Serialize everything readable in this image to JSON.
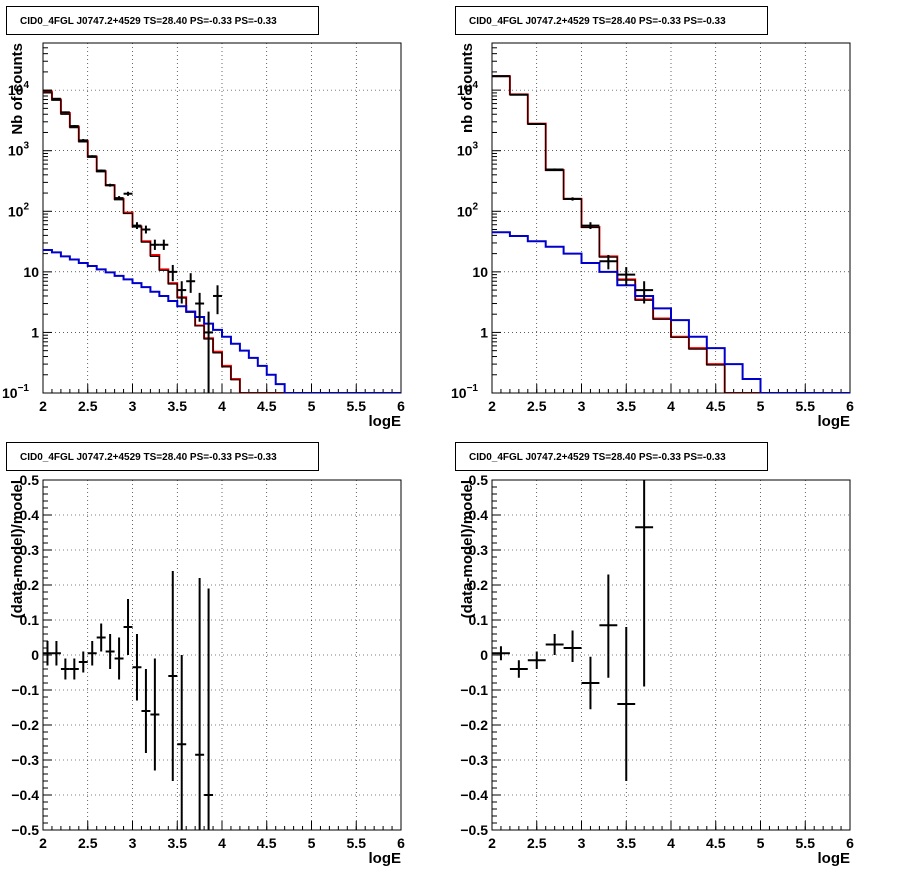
{
  "chart_data": [
    {
      "type": "histogram",
      "title": "CID0_4FGL J0747.2+4529 TS=28.40 PS=-0.33 PS=-0.33",
      "xlabel": "logE",
      "ylabel": "Nb of counts",
      "xlim": [
        2,
        6
      ],
      "ylim": [
        0.1,
        60000
      ],
      "yscale": "log",
      "grid": true,
      "x_ticks": [
        "2",
        "2.5",
        "3",
        "3.5",
        "4",
        "4.5",
        "5",
        "5.5",
        "6"
      ],
      "y_ticks": [
        {
          "v": 0.1,
          "label": "10",
          "sup": "−1"
        },
        {
          "v": 1,
          "label": "1",
          "sup": ""
        },
        {
          "v": 10,
          "label": "10",
          "sup": ""
        },
        {
          "v": 100,
          "label": "10",
          "sup": "2"
        },
        {
          "v": 1000,
          "label": "10",
          "sup": "3"
        },
        {
          "v": 10000,
          "label": "10",
          "sup": "4"
        }
      ],
      "bin_edges": [
        2.0,
        2.1,
        2.2,
        2.3,
        2.4,
        2.5,
        2.6,
        2.7,
        2.8,
        2.9,
        3.0,
        3.1,
        3.2,
        3.3,
        3.4,
        3.5,
        3.6,
        3.7,
        3.8,
        3.9,
        4.0,
        4.1,
        4.2,
        4.3,
        4.4,
        4.5,
        4.6,
        4.7,
        4.8,
        4.9,
        5.0,
        5.1,
        5.2,
        5.3,
        5.4,
        5.5,
        5.6,
        5.7,
        5.8,
        5.9,
        6.0
      ],
      "series": [
        {
          "name": "",
          "color": "#ff0000",
          "values": [
            9500,
            7000,
            4200,
            2500,
            1450,
            800,
            460,
            270,
            160,
            95,
            56,
            32,
            19,
            11,
            6.5,
            3.8,
            2.2,
            1.3,
            0.8,
            0.48,
            0.28,
            0.17,
            0.1,
            0.1,
            0.1,
            0.1,
            0.1,
            0.1,
            0.1,
            0.1,
            0.1,
            0.1,
            0.1,
            0.1,
            0.1,
            0.1,
            0.1,
            0.1,
            0.1,
            0.1
          ]
        },
        {
          "name": "",
          "color": "#000000",
          "values": [
            9000,
            6800,
            4000,
            2400,
            1400,
            780,
            450,
            265,
            155,
            92,
            55,
            31,
            18,
            10.6,
            6.3,
            3.7,
            2.15,
            1.28,
            0.78,
            0.46,
            0.27,
            0.165,
            0.1,
            0.1,
            0.1,
            0.1,
            0.1,
            0.1,
            0.1,
            0.1,
            0.1,
            0.1,
            0.1,
            0.1,
            0.1,
            0.1,
            0.1,
            0.1,
            0.1,
            0.1
          ]
        },
        {
          "name": "",
          "color": "#0000cc",
          "values": [
            23,
            21,
            18,
            16,
            14,
            12.5,
            11,
            9.8,
            8.6,
            7.5,
            6.5,
            5.6,
            4.7,
            4.0,
            3.3,
            2.7,
            2.2,
            1.8,
            1.4,
            1.1,
            0.85,
            0.65,
            0.5,
            0.38,
            0.28,
            0.2,
            0.14,
            0.1,
            0.1,
            0.1,
            0.1,
            0.1,
            0.1,
            0.1,
            0.1,
            0.1,
            0.1,
            0.1,
            0.1,
            0.1
          ]
        }
      ],
      "points": [
        {
          "x": 2.05,
          "y": 9800,
          "ylo": 9600,
          "yhi": 10000
        },
        {
          "x": 2.15,
          "y": 7200,
          "ylo": 7000,
          "yhi": 7400
        },
        {
          "x": 2.25,
          "y": 4300,
          "ylo": 4150,
          "yhi": 4450
        },
        {
          "x": 2.35,
          "y": 2550,
          "ylo": 2450,
          "yhi": 2650
        },
        {
          "x": 2.45,
          "y": 1480,
          "ylo": 1400,
          "yhi": 1560
        },
        {
          "x": 2.55,
          "y": 810,
          "ylo": 780,
          "yhi": 840
        },
        {
          "x": 2.65,
          "y": 470,
          "ylo": 450,
          "yhi": 490
        },
        {
          "x": 2.75,
          "y": 270,
          "ylo": 255,
          "yhi": 285
        },
        {
          "x": 2.85,
          "y": 165,
          "ylo": 155,
          "yhi": 178
        },
        {
          "x": 2.95,
          "y": 195,
          "ylo": 180,
          "yhi": 210
        },
        {
          "x": 3.05,
          "y": 58,
          "ylo": 51,
          "yhi": 66
        },
        {
          "x": 3.15,
          "y": 50,
          "ylo": 43,
          "yhi": 58
        },
        {
          "x": 3.25,
          "y": 28,
          "ylo": 23,
          "yhi": 34
        },
        {
          "x": 3.35,
          "y": 28,
          "ylo": 23,
          "yhi": 34
        },
        {
          "x": 3.45,
          "y": 10,
          "ylo": 7,
          "yhi": 13
        },
        {
          "x": 3.55,
          "y": 5,
          "ylo": 3,
          "yhi": 7
        },
        {
          "x": 3.65,
          "y": 7,
          "ylo": 4.5,
          "yhi": 9.5
        },
        {
          "x": 3.75,
          "y": 3,
          "ylo": 1.5,
          "yhi": 4.5
        },
        {
          "x": 3.85,
          "y": 1,
          "ylo": 0.1,
          "yhi": 2.2
        },
        {
          "x": 3.95,
          "y": 4,
          "ylo": 2,
          "yhi": 6
        }
      ]
    },
    {
      "type": "histogram",
      "title": "CID0_4FGL J0747.2+4529 TS=28.40 PS=-0.33 PS=-0.33",
      "xlabel": "logE",
      "ylabel": "nb of counts",
      "xlim": [
        2,
        6
      ],
      "ylim": [
        0.1,
        60000
      ],
      "yscale": "log",
      "grid": true,
      "x_ticks": [
        "2",
        "2.5",
        "3",
        "3.5",
        "4",
        "4.5",
        "5",
        "5.5",
        "6"
      ],
      "y_ticks": [
        {
          "v": 0.1,
          "label": "10",
          "sup": "−1"
        },
        {
          "v": 1,
          "label": "1",
          "sup": ""
        },
        {
          "v": 10,
          "label": "10",
          "sup": ""
        },
        {
          "v": 100,
          "label": "10",
          "sup": "2"
        },
        {
          "v": 1000,
          "label": "10",
          "sup": "3"
        },
        {
          "v": 10000,
          "label": "10",
          "sup": "4"
        }
      ],
      "bin_edges": [
        2.0,
        2.2,
        2.4,
        2.6,
        2.8,
        3.0,
        3.2,
        3.4,
        3.6,
        3.8,
        4.0,
        4.2,
        4.4,
        4.6,
        4.8,
        5.0,
        5.2,
        5.4,
        5.6,
        5.8,
        6.0
      ],
      "series": [
        {
          "name": "",
          "color": "#ff0000",
          "values": [
            17000,
            8500,
            2800,
            480,
            160,
            55,
            18,
            7.5,
            3.5,
            1.7,
            0.85,
            0.55,
            0.3,
            0.1,
            0.1,
            0.1,
            0.1,
            0.1,
            0.1,
            0.1
          ]
        },
        {
          "name": "",
          "color": "#000000",
          "values": [
            16800,
            8400,
            2750,
            470,
            158,
            54,
            17.5,
            7.3,
            3.4,
            1.65,
            0.83,
            0.53,
            0.29,
            0.1,
            0.1,
            0.1,
            0.1,
            0.1,
            0.1,
            0.1
          ]
        },
        {
          "name": "",
          "color": "#0000cc",
          "values": [
            45,
            39,
            32,
            26,
            20,
            14,
            10,
            6,
            4,
            2.5,
            1.6,
            0.85,
            0.55,
            0.3,
            0.17,
            0.1,
            0.1,
            0.1,
            0.1,
            0.1
          ]
        }
      ],
      "points": [
        {
          "x": 2.1,
          "y": 17000,
          "ylo": 16800,
          "yhi": 17200
        },
        {
          "x": 2.3,
          "y": 8400,
          "ylo": 8300,
          "yhi": 8500
        },
        {
          "x": 2.5,
          "y": 2760,
          "ylo": 2700,
          "yhi": 2820
        },
        {
          "x": 2.7,
          "y": 490,
          "ylo": 470,
          "yhi": 510
        },
        {
          "x": 2.9,
          "y": 160,
          "ylo": 150,
          "yhi": 170
        },
        {
          "x": 3.1,
          "y": 58,
          "ylo": 51,
          "yhi": 66
        },
        {
          "x": 3.3,
          "y": 15,
          "ylo": 11,
          "yhi": 19
        },
        {
          "x": 3.5,
          "y": 9,
          "ylo": 6,
          "yhi": 12
        },
        {
          "x": 3.7,
          "y": 5,
          "ylo": 3,
          "yhi": 7
        }
      ]
    },
    {
      "type": "scatter",
      "title": "CID0_4FGL J0747.2+4529 TS=28.40 PS=-0.33 PS=-0.33",
      "xlabel": "logE",
      "ylabel": "(data-model)/model",
      "xlim": [
        2,
        6
      ],
      "ylim": [
        -0.5,
        0.5
      ],
      "yscale": "linear",
      "grid": true,
      "x_ticks": [
        "2",
        "2.5",
        "3",
        "3.5",
        "4",
        "4.5",
        "5",
        "5.5",
        "6"
      ],
      "y_ticks": [
        {
          "v": -0.5,
          "label": "−0.5",
          "sup": ""
        },
        {
          "v": -0.4,
          "label": "−0.4",
          "sup": ""
        },
        {
          "v": -0.3,
          "label": "−0.3",
          "sup": ""
        },
        {
          "v": -0.2,
          "label": "−0.2",
          "sup": ""
        },
        {
          "v": -0.1,
          "label": "−0.1",
          "sup": ""
        },
        {
          "v": 0,
          "label": "0",
          "sup": ""
        },
        {
          "v": 0.1,
          "label": "0.1",
          "sup": ""
        },
        {
          "v": 0.2,
          "label": "0.2",
          "sup": ""
        },
        {
          "v": 0.3,
          "label": "0.3",
          "sup": ""
        },
        {
          "v": 0.4,
          "label": "0.4",
          "sup": ""
        },
        {
          "v": 0.5,
          "label": "0.5",
          "sup": ""
        }
      ],
      "bin_half_width": 0.05,
      "points": [
        {
          "x": 2.05,
          "y": 0.005,
          "ylo": -0.03,
          "yhi": 0.04
        },
        {
          "x": 2.15,
          "y": 0.005,
          "ylo": -0.03,
          "yhi": 0.04
        },
        {
          "x": 2.25,
          "y": -0.04,
          "ylo": -0.07,
          "yhi": -0.01
        },
        {
          "x": 2.35,
          "y": -0.04,
          "ylo": -0.07,
          "yhi": -0.01
        },
        {
          "x": 2.45,
          "y": -0.02,
          "ylo": -0.05,
          "yhi": 0.01
        },
        {
          "x": 2.55,
          "y": 0.005,
          "ylo": -0.03,
          "yhi": 0.04
        },
        {
          "x": 2.65,
          "y": 0.05,
          "ylo": 0.01,
          "yhi": 0.09
        },
        {
          "x": 2.75,
          "y": 0.01,
          "ylo": -0.04,
          "yhi": 0.06
        },
        {
          "x": 2.85,
          "y": -0.01,
          "ylo": -0.07,
          "yhi": 0.05
        },
        {
          "x": 2.95,
          "y": 0.08,
          "ylo": 0.0,
          "yhi": 0.16
        },
        {
          "x": 3.05,
          "y": -0.035,
          "ylo": -0.13,
          "yhi": 0.06
        },
        {
          "x": 3.15,
          "y": -0.16,
          "ylo": -0.28,
          "yhi": -0.04
        },
        {
          "x": 3.25,
          "y": -0.17,
          "ylo": -0.33,
          "yhi": -0.01
        },
        {
          "x": 3.45,
          "y": -0.06,
          "ylo": -0.36,
          "yhi": 0.24
        },
        {
          "x": 3.55,
          "y": -0.255,
          "ylo": -0.5,
          "yhi": 0.0
        },
        {
          "x": 3.75,
          "y": -0.285,
          "ylo": -0.5,
          "yhi": 0.22
        },
        {
          "x": 3.85,
          "y": -0.4,
          "ylo": -0.5,
          "yhi": 0.19
        }
      ]
    },
    {
      "type": "scatter",
      "title": "CID0_4FGL J0747.2+4529 TS=28.40 PS=-0.33 PS=-0.33",
      "xlabel": "logE",
      "ylabel": "(data-model)/model",
      "xlim": [
        2,
        6
      ],
      "ylim": [
        -0.5,
        0.5
      ],
      "yscale": "linear",
      "grid": true,
      "x_ticks": [
        "2",
        "2.5",
        "3",
        "3.5",
        "4",
        "4.5",
        "5",
        "5.5",
        "6"
      ],
      "y_ticks": [
        {
          "v": -0.5,
          "label": "−0.5",
          "sup": ""
        },
        {
          "v": -0.4,
          "label": "−0.4",
          "sup": ""
        },
        {
          "v": -0.3,
          "label": "−0.3",
          "sup": ""
        },
        {
          "v": -0.2,
          "label": "−0.2",
          "sup": ""
        },
        {
          "v": -0.1,
          "label": "−0.1",
          "sup": ""
        },
        {
          "v": 0,
          "label": "0",
          "sup": ""
        },
        {
          "v": 0.1,
          "label": "0.1",
          "sup": ""
        },
        {
          "v": 0.2,
          "label": "0.2",
          "sup": ""
        },
        {
          "v": 0.3,
          "label": "0.3",
          "sup": ""
        },
        {
          "v": 0.4,
          "label": "0.4",
          "sup": ""
        },
        {
          "v": 0.5,
          "label": "0.5",
          "sup": ""
        }
      ],
      "bin_half_width": 0.1,
      "points": [
        {
          "x": 2.1,
          "y": 0.005,
          "ylo": -0.015,
          "yhi": 0.025
        },
        {
          "x": 2.3,
          "y": -0.04,
          "ylo": -0.065,
          "yhi": -0.015
        },
        {
          "x": 2.5,
          "y": -0.015,
          "ylo": -0.04,
          "yhi": 0.01
        },
        {
          "x": 2.7,
          "y": 0.03,
          "ylo": 0.0,
          "yhi": 0.06
        },
        {
          "x": 2.9,
          "y": 0.02,
          "ylo": -0.02,
          "yhi": 0.07
        },
        {
          "x": 3.1,
          "y": -0.08,
          "ylo": -0.155,
          "yhi": -0.005
        },
        {
          "x": 3.3,
          "y": 0.085,
          "ylo": -0.065,
          "yhi": 0.23
        },
        {
          "x": 3.5,
          "y": -0.14,
          "ylo": -0.36,
          "yhi": 0.08
        },
        {
          "x": 3.7,
          "y": 0.365,
          "ylo": -0.09,
          "yhi": 0.5
        }
      ]
    }
  ]
}
